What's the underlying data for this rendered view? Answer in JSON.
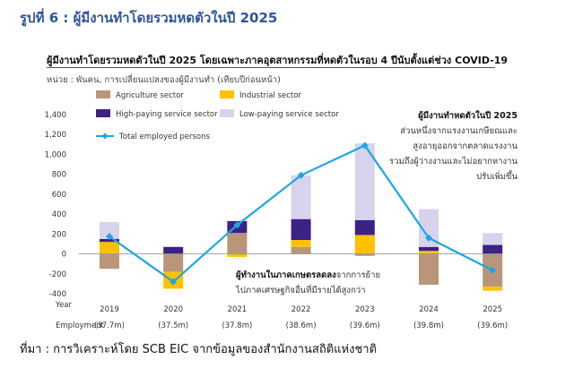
{
  "figure_title": "รูปที่ 6 : ผู้มีงานทำโดยรวมหดตัวในปี 2025",
  "source_note": "ที่มา : การวิเคราะห์โดย SCB EIC จากข้อมูลของสำนักงานสถิติแห่งชาติ",
  "colors": {
    "agriculture": "#b9967a",
    "industrial": "#ffc000",
    "high_paying": "#3c2187",
    "low_paying": "#d7d3ec",
    "employed": "#1ea6e1",
    "title": "#2f5597"
  },
  "chart_data": {
    "type": "bar",
    "title": "ผู้มีงานทำโดยรวมหดตัวในปี 2025 โดยเฉพาะภาคอุตสาหกรรมที่หดตัวในรอบ 4 ปีนับตั้งแต่ช่วง COVID-19",
    "unit_note": "หน่วย : พันคน, การเปลี่ยนแปลงของผู้มีงานทำ (เทียบปีก่อนหน้า)",
    "xlabel": "Year",
    "row_label": "Employment",
    "categories": [
      "2019",
      "2020",
      "2021",
      "2022",
      "2023",
      "2024",
      "2025"
    ],
    "employment": [
      "(37.7m)",
      "(37.5m)",
      "(37.8m)",
      "(38.6m)",
      "(39.6m)",
      "(39.8m)",
      "(39.6m)"
    ],
    "ylim": [
      -400,
      1400
    ],
    "yticks": [
      "1,400",
      "1,200",
      "1,000",
      "800",
      "600",
      "400",
      "200",
      "0",
      "-200",
      "-400"
    ],
    "ytick_values": [
      1400,
      1200,
      1000,
      800,
      600,
      400,
      200,
      0,
      -200,
      -400
    ],
    "grid": false,
    "legend_position": "top-left",
    "series": [
      {
        "name": "Agriculture sector",
        "key": "agriculture",
        "values": [
          -150,
          -180,
          210,
          70,
          -20,
          -310,
          -330
        ]
      },
      {
        "name": "Industrial sector",
        "key": "industrial",
        "values": [
          120,
          -170,
          -30,
          70,
          190,
          30,
          -40
        ]
      },
      {
        "name": "High-paying service sector",
        "key": "high_paying",
        "values": [
          30,
          70,
          120,
          210,
          150,
          40,
          90
        ]
      },
      {
        "name": "Low-paying service sector",
        "key": "low_paying",
        "values": [
          170,
          0,
          0,
          440,
          770,
          380,
          120
        ]
      }
    ],
    "line": {
      "name": "Total employed persons",
      "key": "employed",
      "values": [
        175,
        -280,
        290,
        790,
        1090,
        160,
        -165
      ]
    },
    "annotations": {
      "right_title": "ผู้มีงานทำหดตัวในปี 2025",
      "right_lines": [
        "ส่วนหนึ่งจากแรงงานเกษียณและ",
        "สูงอายุออกจากตลาดแรงงาน",
        "รวมถึงผู้ว่างงานและไม่อยากหางาน",
        "ปรับเพิ่มขึ้น"
      ],
      "bottom_bold": "ผู้ทำงานในภาคเกษตรลดลง",
      "bottom_rest": "จากการย้าย",
      "bottom_line2": "ไปภาคเศรษฐกิจอื่นที่มีรายได้สูงกว่า"
    }
  }
}
